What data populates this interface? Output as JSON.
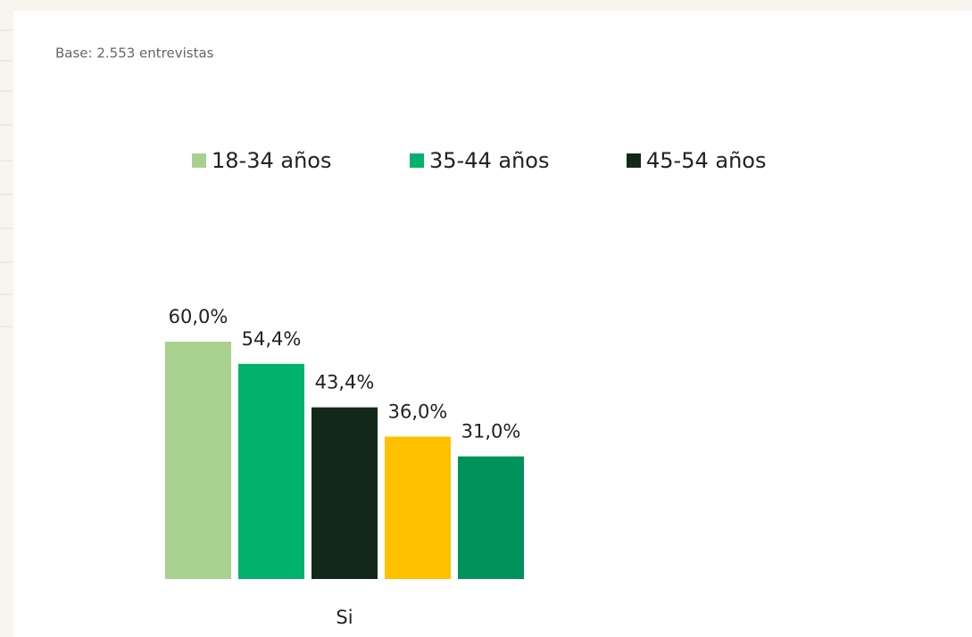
{
  "chart_data": {
    "type": "bar",
    "subtitle": "Base: 2.553 entrevistas",
    "categories": [
      "Si"
    ],
    "series": [
      {
        "name": "18-34 años",
        "color": "#a9d18e",
        "values": [
          60.0
        ],
        "value_labels": [
          "60,0%"
        ]
      },
      {
        "name": "35-44 años",
        "color": "#00b26b",
        "values": [
          54.4
        ],
        "value_labels": [
          "54,4%"
        ]
      },
      {
        "name": "45-54 años",
        "color": "#12291a",
        "values": [
          43.4
        ],
        "value_labels": [
          "43,4%"
        ]
      },
      {
        "color": "#ffc000",
        "values": [
          36.0
        ],
        "value_labels": [
          "36,0%"
        ]
      },
      {
        "color": "#00925a",
        "values": [
          31.0
        ],
        "value_labels": [
          "31,0%"
        ]
      }
    ],
    "legend": "top"
  }
}
